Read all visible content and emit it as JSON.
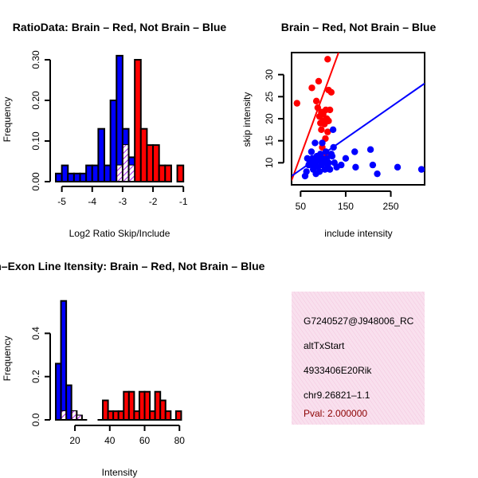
{
  "colors": {
    "red": "#ff0000",
    "blue": "#0000ff",
    "overlap_hatch": "#a020f0",
    "info_bg": "#fbe3f0",
    "pval": "#8b0000"
  },
  "chart_data": [
    {
      "type": "bar",
      "subtype": "histogram",
      "title": "RatioData: Brain – Red, Not Brain – Blue",
      "xlabel": "Log2 Ratio Skip/Include",
      "ylabel": "Frequency",
      "xlim": [
        -5.2,
        -0.9
      ],
      "ylim": [
        0,
        0.3
      ],
      "xticks": [
        -5,
        -4,
        -3,
        -2,
        -1
      ],
      "xtick_labels": [
        "-5",
        "-4",
        "-3",
        "-2",
        "-1"
      ],
      "yticks": [
        0.0,
        0.1,
        0.2,
        0.3
      ],
      "ytick_labels": [
        "0.00",
        "0.10",
        "0.20",
        "0.30"
      ],
      "series": [
        {
          "name": "Not Brain",
          "color": "blue",
          "bins": [
            [
              -5.2,
              -5.0,
              0.02
            ],
            [
              -5.0,
              -4.8,
              0.04
            ],
            [
              -4.8,
              -4.6,
              0.02
            ],
            [
              -4.6,
              -4.4,
              0.02
            ],
            [
              -4.4,
              -4.2,
              0.02
            ],
            [
              -4.2,
              -4.0,
              0.04
            ],
            [
              -4.0,
              -3.8,
              0.04
            ],
            [
              -3.8,
              -3.6,
              0.13
            ],
            [
              -3.6,
              -3.4,
              0.04
            ],
            [
              -3.4,
              -3.2,
              0.2
            ],
            [
              -3.2,
              -3.0,
              0.31
            ],
            [
              -3.0,
              -2.8,
              0.13
            ],
            [
              -2.8,
              -2.6,
              0.06
            ]
          ]
        },
        {
          "name": "Brain",
          "color": "red",
          "bins": [
            [
              -3.2,
              -3.0,
              0.04
            ],
            [
              -3.0,
              -2.8,
              0.09
            ],
            [
              -2.8,
              -2.6,
              0.04
            ],
            [
              -2.6,
              -2.4,
              0.3
            ],
            [
              -2.4,
              -2.2,
              0.13
            ],
            [
              -2.2,
              -2.0,
              0.09
            ],
            [
              -2.0,
              -1.8,
              0.09
            ],
            [
              -1.8,
              -1.6,
              0.04
            ],
            [
              -1.6,
              -1.4,
              0.04
            ],
            [
              -1.2,
              -1.0,
              0.04
            ]
          ]
        }
      ]
    },
    {
      "type": "scatter",
      "title": "Brain – Red, Not Brain – Blue",
      "xlabel": "include intensity",
      "ylabel": "skip intensity",
      "xlim": [
        30,
        325
      ],
      "ylim": [
        5,
        35
      ],
      "xticks": [
        50,
        150,
        250
      ],
      "xtick_labels": [
        "50",
        "150",
        "250"
      ],
      "yticks": [
        10,
        15,
        20,
        25,
        30
      ],
      "ytick_labels": [
        "10",
        "15",
        "20",
        "25",
        "30"
      ],
      "series": [
        {
          "name": "Brain",
          "color": "red",
          "points": [
            [
              42,
              23.5
            ],
            [
              110,
              33.5
            ],
            [
              75,
              27
            ],
            [
              90,
              28.5
            ],
            [
              112,
              26.5
            ],
            [
              118,
              26
            ],
            [
              85,
              24
            ],
            [
              88,
              22.5
            ],
            [
              96,
              21.5
            ],
            [
              106,
              22
            ],
            [
              115,
              22
            ],
            [
              92,
              20.5
            ],
            [
              100,
              19.5
            ],
            [
              103,
              18.8
            ],
            [
              108,
              20
            ],
            [
              96,
              17.5
            ],
            [
              110,
              17
            ],
            [
              105,
              15.5
            ],
            [
              98,
              13.5
            ],
            [
              108,
              12
            ],
            [
              100,
              21
            ],
            [
              94,
              19
            ],
            [
              112,
              19.5
            ]
          ],
          "fit_line": [
            [
              30,
              6
            ],
            [
              145,
              38
            ]
          ]
        },
        {
          "name": "Not Brain",
          "color": "blue",
          "points": [
            [
              60,
              7
            ],
            [
              63,
              8
            ],
            [
              68,
              9.5
            ],
            [
              70,
              10
            ],
            [
              72,
              10.5
            ],
            [
              76,
              11
            ],
            [
              78,
              8.5
            ],
            [
              80,
              9
            ],
            [
              82,
              10
            ],
            [
              84,
              7.5
            ],
            [
              86,
              11.5
            ],
            [
              88,
              9
            ],
            [
              90,
              10.5
            ],
            [
              92,
              8
            ],
            [
              94,
              12
            ],
            [
              96,
              9.5
            ],
            [
              98,
              11
            ],
            [
              100,
              10
            ],
            [
              104,
              8.5
            ],
            [
              106,
              12.5
            ],
            [
              108,
              11
            ],
            [
              110,
              9.5
            ],
            [
              112,
              10
            ],
            [
              115,
              8.5
            ],
            [
              118,
              12
            ],
            [
              120,
              11.5
            ],
            [
              123,
              13.5
            ],
            [
              125,
              10
            ],
            [
              130,
              9
            ],
            [
              140,
              9.5
            ],
            [
              150,
              11
            ],
            [
              170,
              12.5
            ],
            [
              172,
              9
            ],
            [
              205,
              13
            ],
            [
              210,
              9.5
            ],
            [
              220,
              7.5
            ],
            [
              265,
              9
            ],
            [
              318,
              8.5
            ],
            [
              82,
              14.5
            ],
            [
              122,
              17.5
            ],
            [
              98,
              14.5
            ],
            [
              65,
              11
            ],
            [
              74,
              12.5
            ]
          ],
          "fit_line": [
            [
              30,
              7
            ],
            [
              325,
              28
            ]
          ]
        }
      ]
    },
    {
      "type": "bar",
      "subtype": "histogram",
      "title": "Exon–Exon Line Itensity: Brain – Red, Not Brain – Blue",
      "xlabel": "Intensity",
      "ylabel": "Frequency",
      "xlim": [
        9,
        84
      ],
      "ylim": [
        0,
        0.56
      ],
      "xticks": [
        20,
        40,
        60,
        80
      ],
      "xtick_labels": [
        "20",
        "40",
        "60",
        "80"
      ],
      "yticks": [
        0.0,
        0.2,
        0.4
      ],
      "ytick_labels": [
        "0.0",
        "0.2",
        "0.4"
      ],
      "series": [
        {
          "name": "Not Brain",
          "color": "blue",
          "bins": [
            [
              9,
              12,
              0.26
            ],
            [
              12,
              15,
              0.55
            ],
            [
              15,
              18,
              0.16
            ],
            [
              18,
              21,
              0.04
            ],
            [
              21,
              24,
              0.02
            ],
            [
              24,
              27,
              0.0
            ]
          ]
        },
        {
          "name": "Brain",
          "color": "red",
          "bins": [
            [
              12,
              15,
              0.04
            ],
            [
              18,
              21,
              0.04
            ],
            [
              21,
              24,
              0.02
            ],
            [
              33,
              36,
              0.0
            ],
            [
              36,
              39,
              0.09
            ],
            [
              39,
              42,
              0.04
            ],
            [
              42,
              45,
              0.04
            ],
            [
              45,
              48,
              0.04
            ],
            [
              48,
              51,
              0.13
            ],
            [
              51,
              54,
              0.13
            ],
            [
              54,
              57,
              0.04
            ],
            [
              57,
              60,
              0.13
            ],
            [
              60,
              63,
              0.13
            ],
            [
              63,
              66,
              0.04
            ],
            [
              66,
              69,
              0.13
            ],
            [
              69,
              72,
              0.09
            ],
            [
              72,
              75,
              0.04
            ],
            [
              75,
              78,
              0.0
            ],
            [
              78,
              81,
              0.04
            ]
          ]
        }
      ]
    }
  ],
  "info_box": {
    "probe_id": "G7240527@J948006_RC",
    "event_type": "altTxStart",
    "gene": "4933406E20Rik",
    "location": "chr9.26821–1.1",
    "pval": "Pval: 2.000000"
  }
}
